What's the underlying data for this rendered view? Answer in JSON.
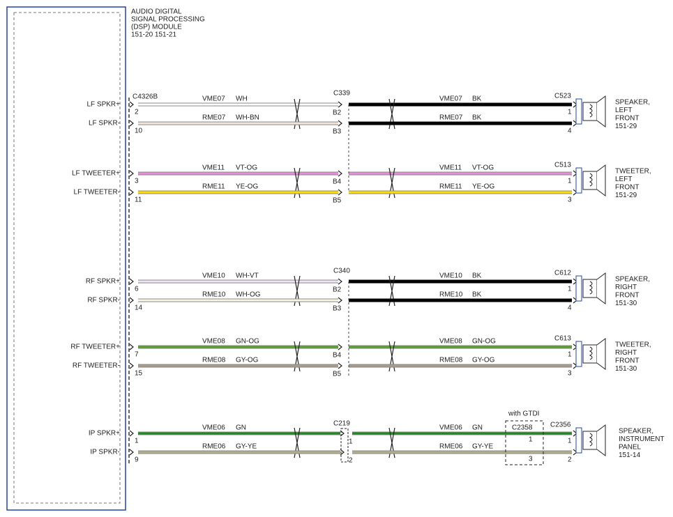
{
  "module": {
    "title_lines": [
      "AUDIO DIGITAL",
      "SIGNAL PROCESSING",
      "(DSP) MODULE",
      "151-20   151-21"
    ],
    "connector": "C4326B"
  },
  "rows": [
    {
      "pin_label": "LF SPKR+",
      "pin": "2",
      "left_circuit": "VME07",
      "left_color": "WH",
      "mid_pin": "B2",
      "right_circuit": "VME07",
      "right_color": "BK",
      "end_pin": "1"
    },
    {
      "pin_label": "LF SPKR-",
      "pin": "10",
      "left_circuit": "RME07",
      "left_color": "WH-BN",
      "mid_pin": "B3",
      "right_circuit": "RME07",
      "right_color": "BK",
      "end_pin": "4"
    },
    {
      "pin_label": "LF TWEETER+",
      "pin": "3",
      "left_circuit": "VME11",
      "left_color": "VT-OG",
      "mid_pin": "B4",
      "right_circuit": "VME11",
      "right_color": "VT-OG",
      "end_pin": "1"
    },
    {
      "pin_label": "LF TWEETER-",
      "pin": "11",
      "left_circuit": "RME11",
      "left_color": "YE-OG",
      "mid_pin": "B5",
      "right_circuit": "RME11",
      "right_color": "YE-OG",
      "end_pin": "3"
    },
    {
      "pin_label": "RF SPKR+",
      "pin": "6",
      "left_circuit": "VME10",
      "left_color": "WH-VT",
      "mid_pin": "B2",
      "right_circuit": "VME10",
      "right_color": "BK",
      "end_pin": "1"
    },
    {
      "pin_label": "RF SPKR-",
      "pin": "14",
      "left_circuit": "RME10",
      "left_color": "WH-OG",
      "mid_pin": "B3",
      "right_circuit": "RME10",
      "right_color": "BK",
      "end_pin": "4"
    },
    {
      "pin_label": "RF TWEETER+",
      "pin": "7",
      "left_circuit": "VME08",
      "left_color": "GN-OG",
      "mid_pin": "B4",
      "right_circuit": "VME08",
      "right_color": "GN-OG",
      "end_pin": "1"
    },
    {
      "pin_label": "RF TWEETER-",
      "pin": "15",
      "left_circuit": "RME08",
      "left_color": "GY-OG",
      "mid_pin": "B5",
      "right_circuit": "RME08",
      "right_color": "GY-OG",
      "end_pin": "3"
    },
    {
      "pin_label": "IP SPKR+",
      "pin": "1",
      "left_circuit": "VME06",
      "left_color": "GN",
      "mid_pin": "1",
      "right_circuit": "VME06",
      "right_color": "GN",
      "end_pin": "1"
    },
    {
      "pin_label": "IP SPKR-",
      "pin": "9",
      "left_circuit": "RME06",
      "left_color": "GY-YE",
      "mid_pin": "2",
      "right_circuit": "RME06",
      "right_color": "GY-YE",
      "end_pin": "2"
    }
  ],
  "inline_connectors": [
    "C339",
    "C340",
    "C219"
  ],
  "option_connector": {
    "note": "with GTDI",
    "label": "C2358",
    "pins": [
      "1",
      "3"
    ]
  },
  "speakers": [
    {
      "connector": "C523",
      "lines": [
        "SPEAKER,",
        "LEFT",
        "FRONT",
        "151-29"
      ]
    },
    {
      "connector": "C513",
      "lines": [
        "TWEETER,",
        "LEFT",
        "FRONT",
        "151-29"
      ]
    },
    {
      "connector": "C612",
      "lines": [
        "SPEAKER,",
        "RIGHT",
        "FRONT",
        "151-30"
      ]
    },
    {
      "connector": "C613",
      "lines": [
        "TWEETER,",
        "RIGHT",
        "FRONT",
        "151-30"
      ]
    },
    {
      "connector": "C2356",
      "lines": [
        "SPEAKER,",
        "INSTRUMENT",
        "PANEL",
        "151-14"
      ]
    }
  ]
}
